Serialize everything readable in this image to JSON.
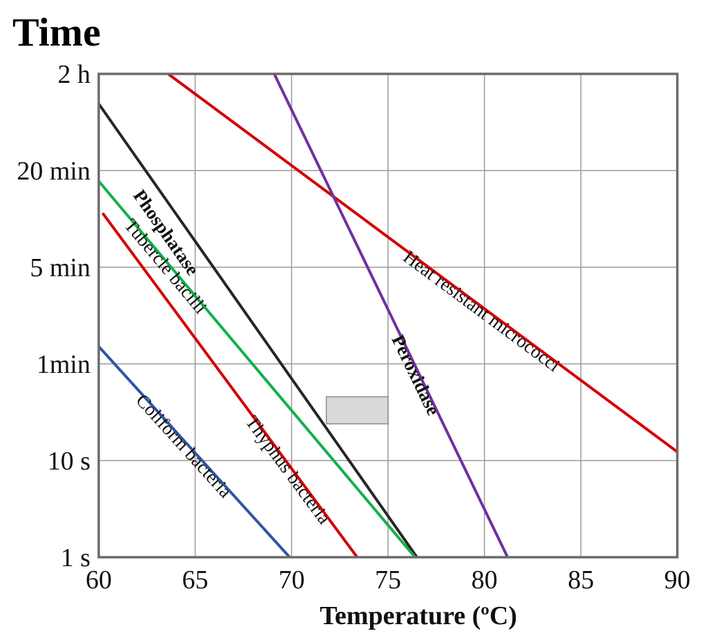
{
  "chart_data": {
    "type": "line",
    "title": "Time",
    "xlabel": "Temperature (ºC)",
    "ylabel": "Time",
    "xlim": [
      60,
      90
    ],
    "x_ticks": [
      "60",
      "65",
      "70",
      "75",
      "80",
      "85",
      "90"
    ],
    "x_tick_values": [
      60,
      65,
      70,
      75,
      80,
      85,
      90
    ],
    "y_scale": "categorical-log (ticks evenly spaced, index 0 = 1 s)",
    "ylim": [
      0,
      5
    ],
    "y_ticks": [
      "1 s",
      "10 s",
      "1min",
      "5 min",
      "20 min",
      "2 h"
    ],
    "y_tick_positions": [
      0,
      1,
      2,
      3,
      4,
      5
    ],
    "grid": true,
    "series": [
      {
        "name": "Heat resistant micrococci",
        "color": "#d40000",
        "bold": false,
        "x": [
          63.6,
          90
        ],
        "y": [
          5,
          1.09
        ]
      },
      {
        "name": "Peroxidase",
        "color": "#7030a0",
        "bold": true,
        "x": [
          69.1,
          81.2
        ],
        "y": [
          5,
          0
        ]
      },
      {
        "name": "Phosphatase",
        "color": "#262626",
        "bold": true,
        "x": [
          60,
          76.5
        ],
        "y": [
          4.69,
          0
        ]
      },
      {
        "name": "Tubercle bacilli",
        "color": "#12b04a",
        "bold": false,
        "x": [
          60,
          76.4
        ],
        "y": [
          3.89,
          0
        ]
      },
      {
        "name": "Thyphus bacteria",
        "color": "#d40000",
        "bold": false,
        "x": [
          60.2,
          73.4
        ],
        "y": [
          3.56,
          0
        ]
      },
      {
        "name": "Coliform bacteria",
        "color": "#2f55a4",
        "bold": false,
        "x": [
          60,
          69.9
        ],
        "y": [
          2.18,
          0
        ]
      }
    ],
    "annotations": [
      {
        "type": "shaded-box",
        "color": "#d9d9d9",
        "x": [
          71.8,
          75
        ],
        "y": [
          1.38,
          1.66
        ]
      }
    ]
  }
}
